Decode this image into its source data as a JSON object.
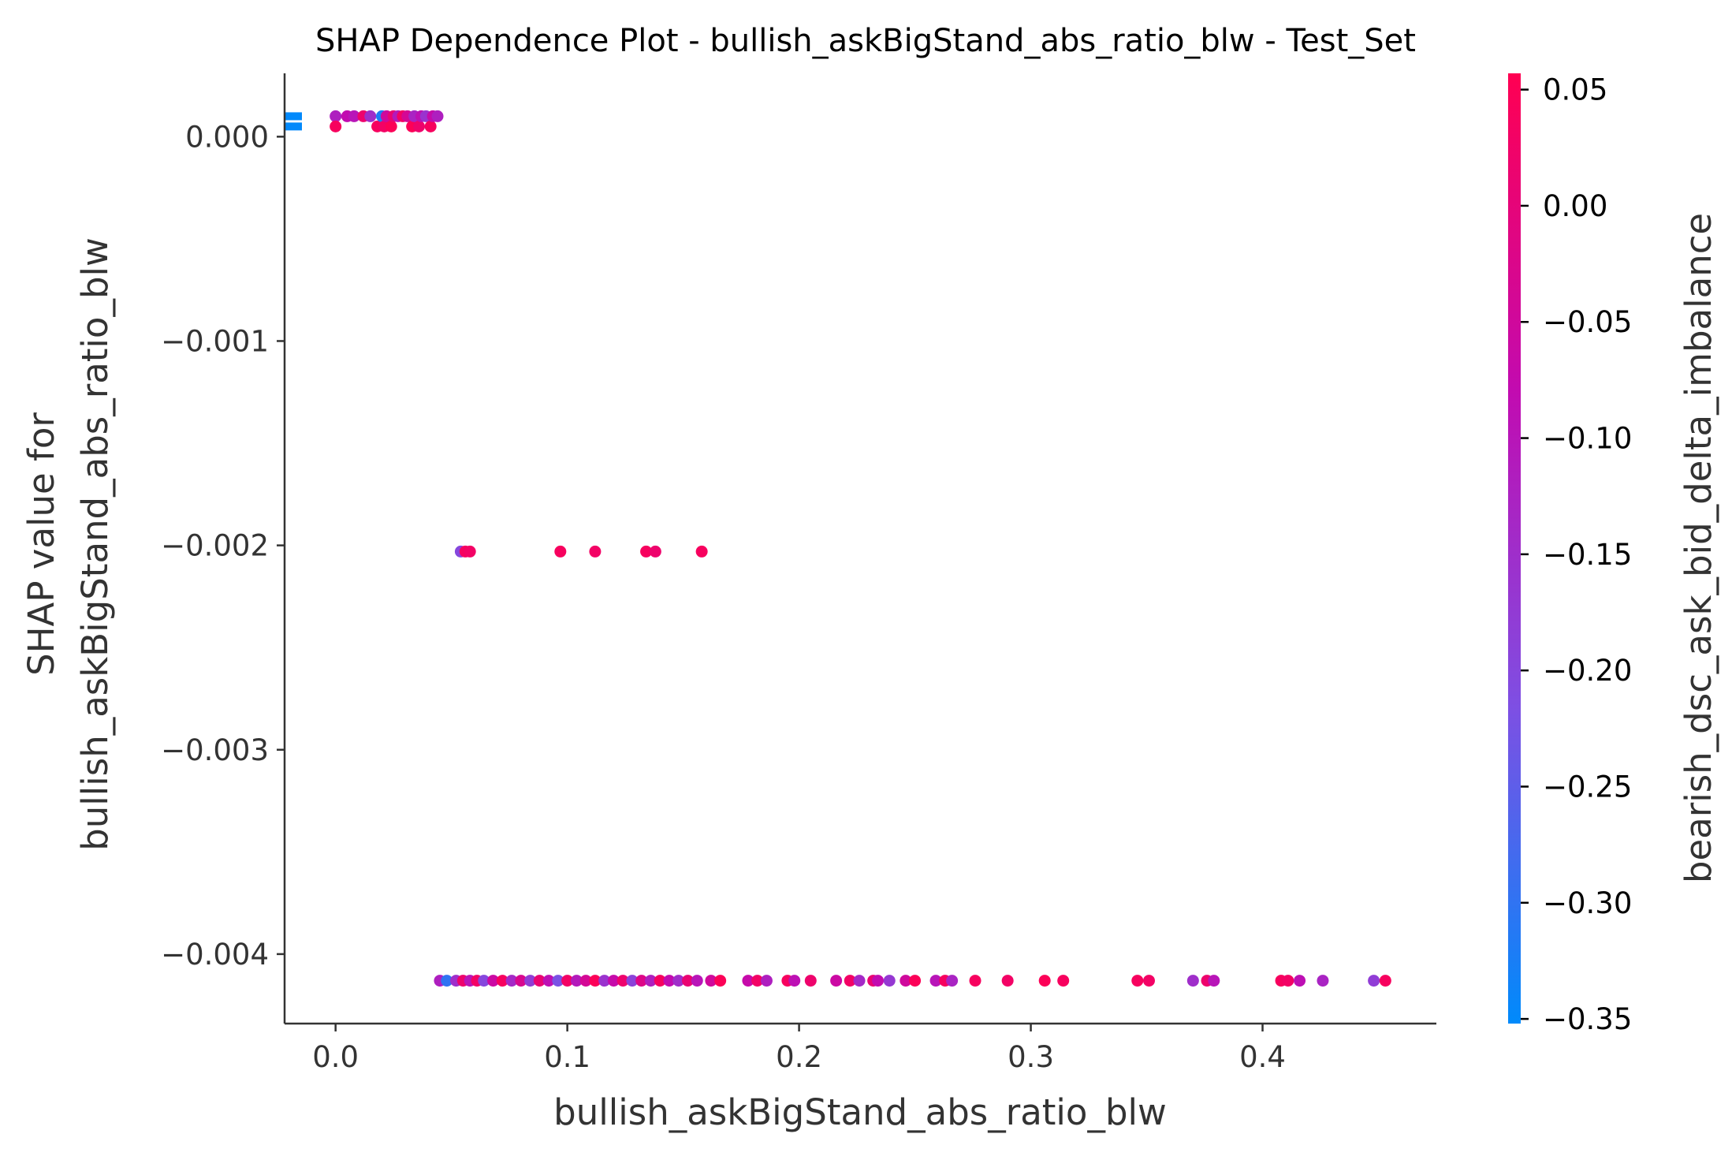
{
  "chart_data": {
    "type": "scatter",
    "title": "SHAP Dependence Plot - bullish_askBigStand_abs_ratio_blw - Test_Set",
    "xlabel": "bullish_askBigStand_abs_ratio_blw",
    "ylabel_line1": "SHAP value for",
    "ylabel_line2": "bullish_askBigStand_abs_ratio_blw",
    "xlim": [
      -0.022,
      0.475
    ],
    "ylim": [
      -0.00434,
      0.00031
    ],
    "x_ticks": [
      0.0,
      0.1,
      0.2,
      0.3,
      0.4
    ],
    "x_tick_labels": [
      "0.0",
      "0.1",
      "0.2",
      "0.3",
      "0.4"
    ],
    "y_ticks": [
      0.0,
      -0.001,
      -0.002,
      -0.003,
      -0.004
    ],
    "y_tick_labels": [
      "0.000",
      "−0.001",
      "−0.002",
      "−0.003",
      "−0.004"
    ],
    "grid": false,
    "colorbar": {
      "label": "bearish_dsc_ask_bid_delta_imbalance",
      "range": [
        -0.352,
        0.057
      ],
      "ticks": [
        0.05,
        0.0,
        -0.05,
        -0.1,
        -0.15,
        -0.2,
        -0.25,
        -0.3,
        -0.35
      ],
      "tick_labels": [
        "0.05",
        "0.00",
        "−0.05",
        "−0.10",
        "−0.15",
        "−0.20",
        "−0.25",
        "−0.30",
        "−0.35"
      ],
      "colormap": [
        "#008afb",
        "#7e4fe3",
        "#c20bb0",
        "#ff0052"
      ]
    },
    "points": [
      {
        "x": -0.02,
        "y": 0.0001,
        "c": -0.35
      },
      {
        "x": -0.02,
        "y": 5e-05,
        "c": -0.35
      },
      {
        "x": 0.0,
        "y": 0.0001,
        "c": -0.12
      },
      {
        "x": 0.0,
        "y": 5e-05,
        "c": 0.04
      },
      {
        "x": 0.005,
        "y": 0.0001,
        "c": -0.08
      },
      {
        "x": 0.008,
        "y": 0.0001,
        "c": -0.1
      },
      {
        "x": 0.012,
        "y": 0.0001,
        "c": 0.02
      },
      {
        "x": 0.015,
        "y": 0.0001,
        "c": -0.15
      },
      {
        "x": 0.018,
        "y": 5e-05,
        "c": 0.04
      },
      {
        "x": 0.02,
        "y": 0.0001,
        "c": -0.32
      },
      {
        "x": 0.021,
        "y": 5e-05,
        "c": 0.03
      },
      {
        "x": 0.022,
        "y": 0.0001,
        "c": -0.05
      },
      {
        "x": 0.024,
        "y": 5e-05,
        "c": 0.05
      },
      {
        "x": 0.025,
        "y": 0.0001,
        "c": 0.01
      },
      {
        "x": 0.027,
        "y": 0.0001,
        "c": -0.11
      },
      {
        "x": 0.029,
        "y": 0.0001,
        "c": 0.03
      },
      {
        "x": 0.031,
        "y": 0.0001,
        "c": -0.04
      },
      {
        "x": 0.033,
        "y": 5e-05,
        "c": 0.05
      },
      {
        "x": 0.034,
        "y": 0.0001,
        "c": -0.13
      },
      {
        "x": 0.036,
        "y": 5e-05,
        "c": 0.02
      },
      {
        "x": 0.037,
        "y": 0.0001,
        "c": -0.09
      },
      {
        "x": 0.039,
        "y": 0.0001,
        "c": -0.16
      },
      {
        "x": 0.041,
        "y": 5e-05,
        "c": 0.04
      },
      {
        "x": 0.042,
        "y": 0.0001,
        "c": -0.07
      },
      {
        "x": 0.044,
        "y": 0.0001,
        "c": -0.12
      },
      {
        "x": 0.054,
        "y": -0.00203,
        "c": -0.2
      },
      {
        "x": 0.056,
        "y": -0.00203,
        "c": 0.04
      },
      {
        "x": 0.058,
        "y": -0.00203,
        "c": 0.03
      },
      {
        "x": 0.097,
        "y": -0.00203,
        "c": 0.04
      },
      {
        "x": 0.112,
        "y": -0.00203,
        "c": 0.03
      },
      {
        "x": 0.134,
        "y": -0.00203,
        "c": 0.04
      },
      {
        "x": 0.138,
        "y": -0.00203,
        "c": 0.02
      },
      {
        "x": 0.158,
        "y": -0.00203,
        "c": 0.04
      },
      {
        "x": 0.045,
        "y": -0.00413,
        "c": -0.12
      },
      {
        "x": 0.048,
        "y": -0.00413,
        "c": -0.3
      },
      {
        "x": 0.052,
        "y": -0.00413,
        "c": -0.15
      },
      {
        "x": 0.055,
        "y": -0.00413,
        "c": 0.02
      },
      {
        "x": 0.058,
        "y": -0.00413,
        "c": -0.1
      },
      {
        "x": 0.061,
        "y": -0.00413,
        "c": 0.03
      },
      {
        "x": 0.064,
        "y": -0.00413,
        "c": -0.2
      },
      {
        "x": 0.068,
        "y": -0.00413,
        "c": -0.06
      },
      {
        "x": 0.072,
        "y": -0.00413,
        "c": 0.04
      },
      {
        "x": 0.076,
        "y": -0.00413,
        "c": -0.14
      },
      {
        "x": 0.08,
        "y": -0.00413,
        "c": -0.03
      },
      {
        "x": 0.084,
        "y": -0.00413,
        "c": -0.18
      },
      {
        "x": 0.088,
        "y": -0.00413,
        "c": 0.01
      },
      {
        "x": 0.092,
        "y": -0.00413,
        "c": -0.09
      },
      {
        "x": 0.096,
        "y": -0.00413,
        "c": -0.22
      },
      {
        "x": 0.1,
        "y": -0.00413,
        "c": 0.03
      },
      {
        "x": 0.104,
        "y": -0.00413,
        "c": -0.11
      },
      {
        "x": 0.108,
        "y": -0.00413,
        "c": -0.04
      },
      {
        "x": 0.112,
        "y": -0.00413,
        "c": 0.05
      },
      {
        "x": 0.116,
        "y": -0.00413,
        "c": -0.16
      },
      {
        "x": 0.12,
        "y": -0.00413,
        "c": -0.07
      },
      {
        "x": 0.124,
        "y": -0.00413,
        "c": 0.02
      },
      {
        "x": 0.128,
        "y": -0.00413,
        "c": -0.19
      },
      {
        "x": 0.132,
        "y": -0.00413,
        "c": -0.02
      },
      {
        "x": 0.136,
        "y": -0.00413,
        "c": -0.12
      },
      {
        "x": 0.14,
        "y": -0.00413,
        "c": 0.04
      },
      {
        "x": 0.144,
        "y": -0.00413,
        "c": -0.08
      },
      {
        "x": 0.148,
        "y": -0.00413,
        "c": -0.15
      },
      {
        "x": 0.152,
        "y": -0.00413,
        "c": 0.01
      },
      {
        "x": 0.156,
        "y": -0.00413,
        "c": -0.1
      },
      {
        "x": 0.162,
        "y": -0.00413,
        "c": -0.05
      },
      {
        "x": 0.166,
        "y": -0.00413,
        "c": 0.05
      },
      {
        "x": 0.178,
        "y": -0.00413,
        "c": -0.07
      },
      {
        "x": 0.182,
        "y": -0.00413,
        "c": 0.03
      },
      {
        "x": 0.186,
        "y": -0.00413,
        "c": -0.12
      },
      {
        "x": 0.195,
        "y": -0.00413,
        "c": 0.04
      },
      {
        "x": 0.198,
        "y": -0.00413,
        "c": -0.09
      },
      {
        "x": 0.205,
        "y": -0.00413,
        "c": 0.02
      },
      {
        "x": 0.216,
        "y": -0.00413,
        "c": -0.06
      },
      {
        "x": 0.222,
        "y": -0.00413,
        "c": 0.03
      },
      {
        "x": 0.226,
        "y": -0.00413,
        "c": -0.14
      },
      {
        "x": 0.232,
        "y": -0.00413,
        "c": 0.01
      },
      {
        "x": 0.234,
        "y": -0.00413,
        "c": -0.08
      },
      {
        "x": 0.239,
        "y": -0.00413,
        "c": -0.17
      },
      {
        "x": 0.246,
        "y": -0.00413,
        "c": -0.05
      },
      {
        "x": 0.25,
        "y": -0.00413,
        "c": 0.05
      },
      {
        "x": 0.259,
        "y": -0.00413,
        "c": -0.1
      },
      {
        "x": 0.263,
        "y": -0.00413,
        "c": 0.04
      },
      {
        "x": 0.266,
        "y": -0.00413,
        "c": -0.13
      },
      {
        "x": 0.276,
        "y": -0.00413,
        "c": 0.04
      },
      {
        "x": 0.29,
        "y": -0.00413,
        "c": 0.03
      },
      {
        "x": 0.306,
        "y": -0.00413,
        "c": 0.05
      },
      {
        "x": 0.314,
        "y": -0.00413,
        "c": 0.04
      },
      {
        "x": 0.346,
        "y": -0.00413,
        "c": 0.04
      },
      {
        "x": 0.351,
        "y": -0.00413,
        "c": 0.03
      },
      {
        "x": 0.37,
        "y": -0.00413,
        "c": -0.15
      },
      {
        "x": 0.376,
        "y": -0.00413,
        "c": 0.02
      },
      {
        "x": 0.379,
        "y": -0.00413,
        "c": -0.1
      },
      {
        "x": 0.408,
        "y": -0.00413,
        "c": 0.04
      },
      {
        "x": 0.411,
        "y": -0.00413,
        "c": 0.03
      },
      {
        "x": 0.416,
        "y": -0.00413,
        "c": -0.09
      },
      {
        "x": 0.426,
        "y": -0.00413,
        "c": -0.13
      },
      {
        "x": 0.448,
        "y": -0.00413,
        "c": -0.18
      },
      {
        "x": 0.453,
        "y": -0.00413,
        "c": 0.04
      }
    ]
  }
}
